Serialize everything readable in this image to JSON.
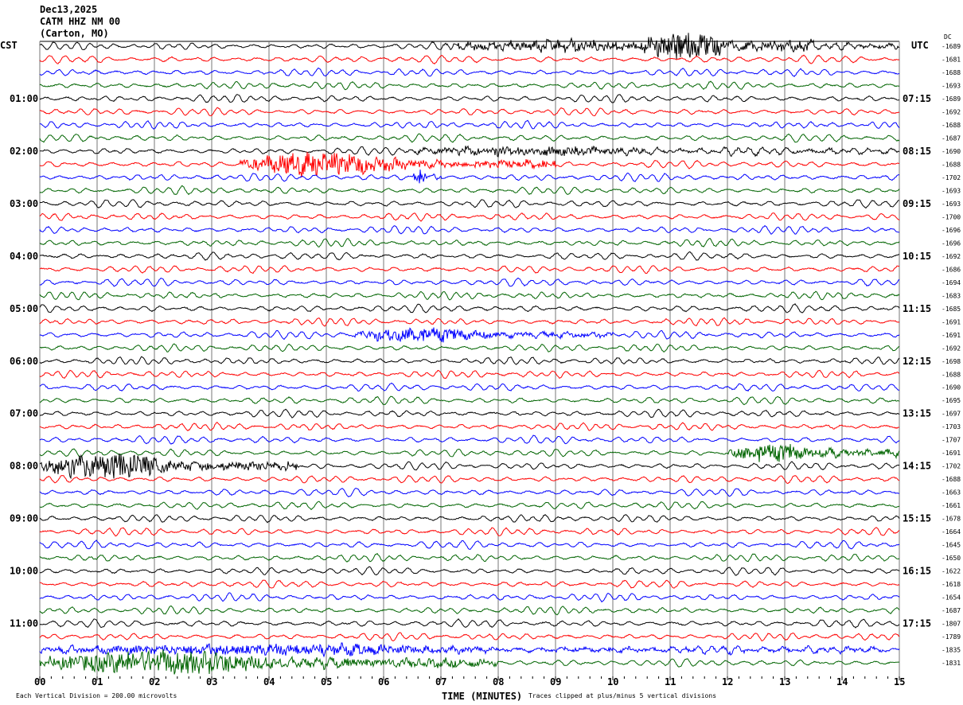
{
  "header": {
    "date": "Dec13,2025",
    "station": "CATM HHZ NM 00",
    "location": "(Carton, MO)"
  },
  "chart_data": {
    "type": "line",
    "title": "",
    "xlabel": "TIME (MINUTES)",
    "xlim": [
      0,
      15
    ],
    "x_ticks": [
      "00",
      "01",
      "02",
      "03",
      "04",
      "05",
      "06",
      "07",
      "08",
      "09",
      "10",
      "11",
      "12",
      "13",
      "14",
      "15"
    ],
    "left_axis_label": "CST",
    "right_axis_label": "UTC",
    "dc_label": "DC",
    "left_hour_labels": [
      "01:00",
      "02:00",
      "03:00",
      "04:00",
      "05:00",
      "06:00",
      "07:00",
      "08:00",
      "09:00",
      "10:00",
      "11:00"
    ],
    "right_hour_labels": [
      "07:15",
      "08:15",
      "09:15",
      "10:15",
      "11:15",
      "12:15",
      "13:15",
      "14:15",
      "15:15",
      "16:15",
      "17:15"
    ],
    "trace_colors": [
      "#000000",
      "#ff0000",
      "#0000ff",
      "#006400"
    ],
    "trace_count": 48,
    "dc_offsets": [
      -1689,
      -1681,
      -1688,
      -1693,
      -1689,
      -1692,
      -1688,
      -1687,
      -1690,
      -1688,
      -1702,
      -1693,
      -1693,
      -1700,
      -1696,
      -1696,
      -1692,
      -1686,
      -1694,
      -1683,
      -1685,
      -1691,
      -1691,
      -1692,
      -1698,
      -1688,
      -1690,
      -1695,
      -1697,
      -1703,
      -1707,
      -1691,
      -1702,
      -1688,
      -1663,
      -1661,
      -1678,
      -1664,
      -1645,
      -1650,
      -1622,
      -1618,
      -1654,
      -1687,
      -1807,
      -1789,
      -1835,
      -1831
    ],
    "grid": true
  },
  "footer": {
    "scale_note": "Each Vertical Division =  200.00 microvolts",
    "clip_note": "Traces clipped at plus/minus 5 vertical divisions"
  }
}
